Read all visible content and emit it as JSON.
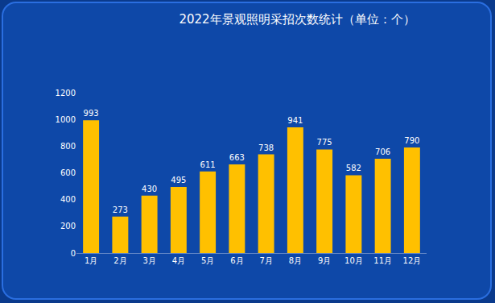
{
  "chart_data": {
    "type": "bar",
    "title": "2022年景观照明采招次数统计（单位：个）",
    "categories": [
      "1月",
      "2月",
      "3月",
      "4月",
      "5月",
      "6月",
      "7月",
      "8月",
      "9月",
      "10月",
      "11月",
      "12月"
    ],
    "values": [
      993,
      273,
      430,
      495,
      611,
      663,
      738,
      941,
      775,
      582,
      706,
      790
    ],
    "color": "#ffc000",
    "ylim": [
      0,
      1200
    ],
    "yticks": [
      0,
      200,
      400,
      600,
      800,
      1000,
      1200
    ],
    "grid": false,
    "data_labels": true
  }
}
